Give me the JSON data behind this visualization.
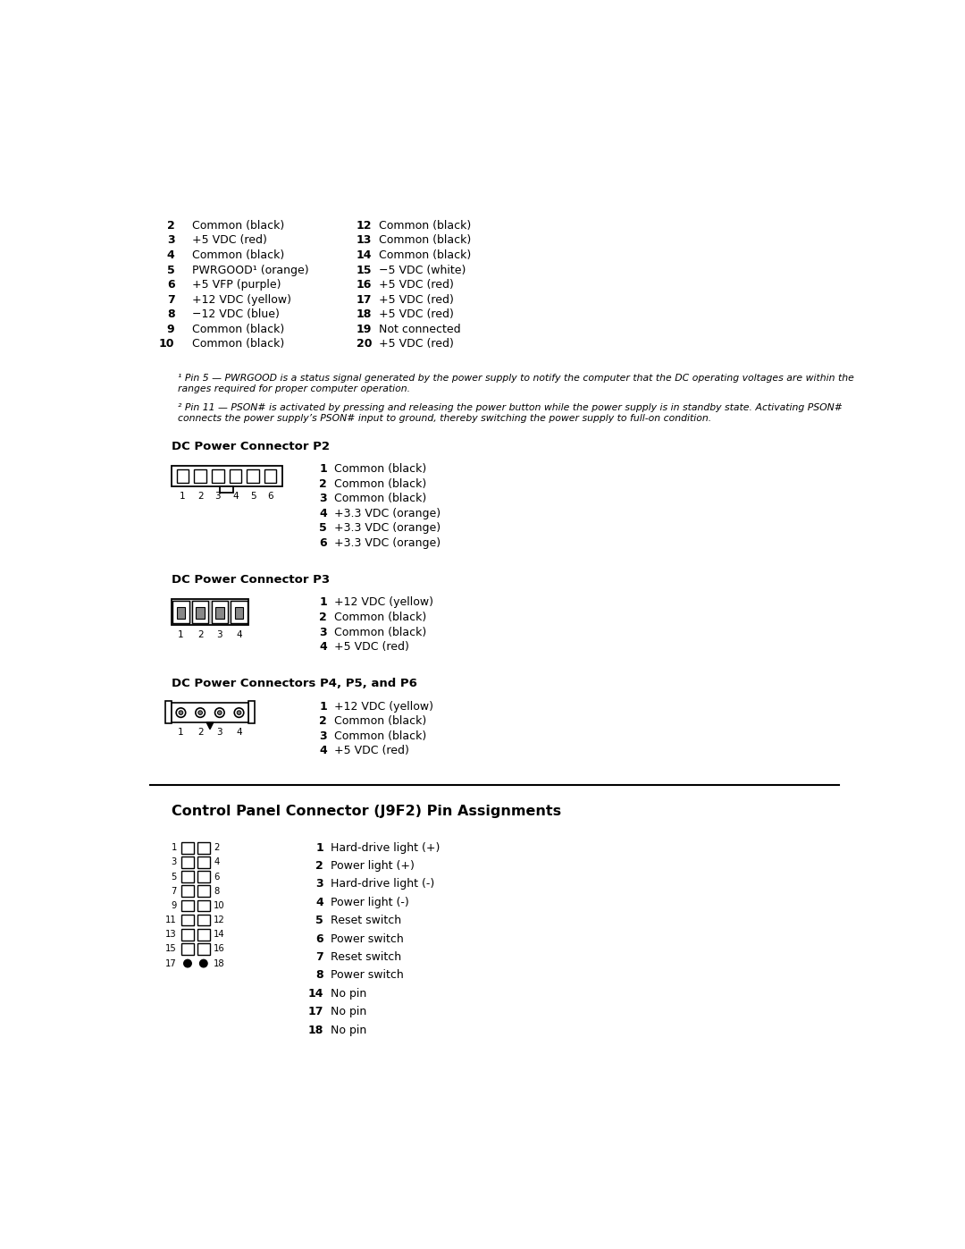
{
  "bg_color": "#ffffff",
  "text_color": "#000000",
  "page_width": 10.8,
  "page_height": 13.97,
  "footnote1": "  ¹ Pin 5 — PWRGOOD is a status signal generated by the power supply to notify the computer that the DC operating voltages are within the\n  ranges required for proper computer operation.",
  "footnote2": "  ² Pin 11 — PSON# is activated by pressing and releasing the power button while the power supply is in standby state. Activating PSON#\n  connects the power supply’s PSON# input to ground, thereby switching the power supply to full-on condition.",
  "col1_pins": [
    [
      "2",
      "Common (black)"
    ],
    [
      "3",
      "+5 VDC (red)"
    ],
    [
      "4",
      "Common (black)"
    ],
    [
      "5",
      "PWRGOOD¹ (orange)"
    ],
    [
      "6",
      "+5 VFP (purple)"
    ],
    [
      "7",
      "+12 VDC (yellow)"
    ],
    [
      "8",
      "−12 VDC (blue)"
    ],
    [
      "9",
      "Common (black)"
    ],
    [
      "10",
      "Common (black)"
    ]
  ],
  "col2_pins": [
    [
      "12",
      "Common (black)"
    ],
    [
      "13",
      "Common (black)"
    ],
    [
      "14",
      "Common (black)"
    ],
    [
      "15",
      "−5 VDC (white)"
    ],
    [
      "16",
      "+5 VDC (red)"
    ],
    [
      "17",
      "+5 VDC (red)"
    ],
    [
      "18",
      "+5 VDC (red)"
    ],
    [
      "19",
      "Not connected"
    ],
    [
      "20",
      "+5 VDC (red)"
    ]
  ],
  "p2_title": "DC Power Connector P2",
  "p2_pins": [
    [
      "1",
      "Common (black)"
    ],
    [
      "2",
      "Common (black)"
    ],
    [
      "3",
      "Common (black)"
    ],
    [
      "4",
      "+3.3 VDC (orange)"
    ],
    [
      "5",
      "+3.3 VDC (orange)"
    ],
    [
      "6",
      "+3.3 VDC (orange)"
    ]
  ],
  "p3_title": "DC Power Connector P3",
  "p3_pins": [
    [
      "1",
      "+12 VDC (yellow)"
    ],
    [
      "2",
      "Common (black)"
    ],
    [
      "3",
      "Common (black)"
    ],
    [
      "4",
      "+5 VDC (red)"
    ]
  ],
  "p456_title": "DC Power Connectors P4, P5, and P6",
  "p456_pins": [
    [
      "1",
      "+12 VDC (yellow)"
    ],
    [
      "2",
      "Common (black)"
    ],
    [
      "3",
      "Common (black)"
    ],
    [
      "4",
      "+5 VDC (red)"
    ]
  ],
  "j9f2_title": "Control Panel Connector (J9F2) Pin Assignments",
  "j9f2_pins": [
    [
      "1",
      "Hard-drive light (+)"
    ],
    [
      "2",
      "Power light (+)"
    ],
    [
      "3",
      "Hard-drive light (-)"
    ],
    [
      "4",
      "Power light (-)"
    ],
    [
      "5",
      "Reset switch"
    ],
    [
      "6",
      "Power switch"
    ],
    [
      "7",
      "Reset switch"
    ],
    [
      "8",
      "Power switch"
    ],
    [
      "14",
      "No pin"
    ],
    [
      "17",
      "No pin"
    ],
    [
      "18",
      "No pin"
    ]
  ],
  "j9f2_rows": [
    [
      "1",
      "2"
    ],
    [
      "3",
      "4"
    ],
    [
      "5",
      "6"
    ],
    [
      "7",
      "8"
    ],
    [
      "9",
      "10"
    ],
    [
      "11",
      "12"
    ],
    [
      "13",
      "14"
    ],
    [
      "15",
      "16"
    ],
    [
      "17",
      "18"
    ]
  ]
}
